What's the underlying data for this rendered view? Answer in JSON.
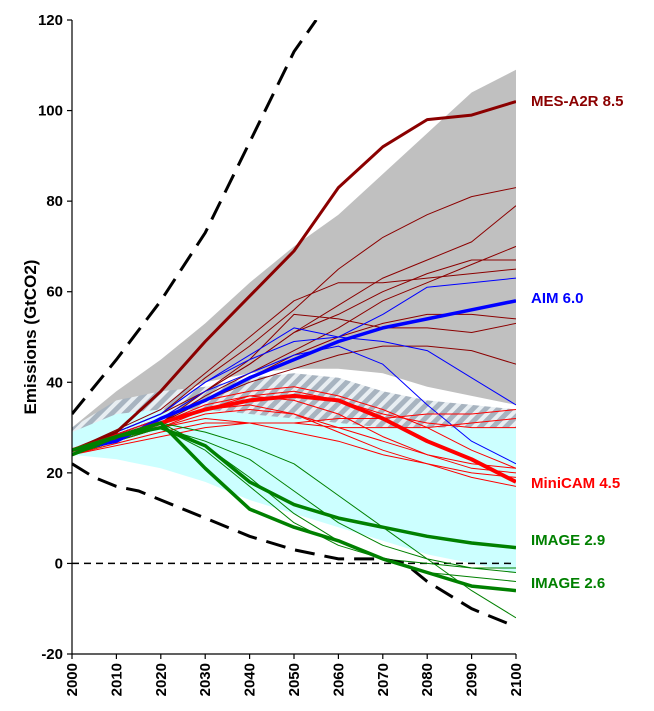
{
  "chart_data": {
    "type": "line",
    "title": "",
    "xlabel": "",
    "ylabel": "Emissions (GtCO2)",
    "xlim": [
      2000,
      2100
    ],
    "ylim": [
      -20,
      120
    ],
    "x_ticks": [
      2000,
      2010,
      2020,
      2030,
      2040,
      2050,
      2060,
      2070,
      2080,
      2090,
      2100
    ],
    "y_ticks": [
      -20,
      0,
      20,
      40,
      60,
      80,
      100,
      120
    ],
    "grid": false,
    "legend": "none",
    "colors": {
      "mes": "#8B0000",
      "aim": "#0000FF",
      "minicam": "#FF0000",
      "image": "#008000",
      "gray_band": "#C0C0C0",
      "cyan_band": "#CCFFFF",
      "hatch": "#A8B4C0"
    },
    "bands": [
      {
        "kind": "gray",
        "x": [
          2000,
          2010,
          2020,
          2030,
          2040,
          2050,
          2060,
          2070,
          2080,
          2090,
          2100
        ],
        "upper": [
          30,
          38,
          45,
          53,
          62,
          70,
          77,
          86,
          95,
          104,
          109
        ],
        "lower": [
          27,
          30,
          36,
          40,
          42,
          43,
          43,
          42,
          39,
          37,
          35
        ]
      },
      {
        "kind": "hatch",
        "x": [
          2000,
          2010,
          2020,
          2030,
          2040,
          2050,
          2060,
          2070,
          2080,
          2090,
          2100
        ],
        "upper": [
          30,
          36,
          38,
          39,
          41,
          42,
          41,
          38,
          36,
          35,
          34
        ],
        "lower": [
          28,
          30,
          31,
          31,
          32,
          32,
          31,
          30,
          30,
          30,
          30
        ]
      },
      {
        "kind": "cyan",
        "x": [
          2000,
          2010,
          2020,
          2030,
          2040,
          2050,
          2060,
          2070,
          2080,
          2090,
          2100
        ],
        "upper": [
          29,
          33,
          34,
          34,
          33,
          32,
          31,
          30,
          30,
          30,
          30
        ],
        "lower": [
          24,
          23,
          21,
          18,
          14,
          11,
          8,
          5,
          2,
          0,
          -2
        ]
      }
    ],
    "dashed_bounds": [
      {
        "x": [
          2000,
          2010,
          2020,
          2030,
          2040,
          2050,
          2055
        ],
        "y": [
          33,
          45,
          58,
          73,
          93,
          113,
          120
        ]
      },
      {
        "x": [
          2000,
          2005,
          2010,
          2015,
          2020,
          2030,
          2040,
          2050,
          2060,
          2070,
          2075,
          2080,
          2090,
          2100
        ],
        "y": [
          22,
          19,
          17,
          16,
          14,
          10,
          6,
          3,
          1,
          1,
          0,
          -4,
          -10,
          -14
        ]
      }
    ],
    "zero_line": 0,
    "series": [
      {
        "name": "MES-A2R 8.5",
        "color": "#8B0000",
        "width": 3,
        "x": [
          2000,
          2010,
          2020,
          2030,
          2040,
          2050,
          2060,
          2070,
          2080,
          2090,
          2100
        ],
        "y": [
          25,
          29,
          38,
          49,
          59,
          69,
          83,
          92,
          98,
          99,
          102
        ]
      },
      {
        "name": "AIM 6.0",
        "color": "#0000FF",
        "width": 3.5,
        "x": [
          2000,
          2010,
          2020,
          2030,
          2040,
          2050,
          2060,
          2070,
          2080,
          2090,
          2100
        ],
        "y": [
          25,
          27,
          32,
          36,
          41,
          45,
          49,
          52,
          54,
          56,
          58
        ]
      },
      {
        "name": "MiniCAM 4.5",
        "color": "#FF0000",
        "width": 4,
        "x": [
          2000,
          2010,
          2020,
          2030,
          2040,
          2050,
          2060,
          2070,
          2080,
          2090,
          2100
        ],
        "y": [
          25,
          28,
          31,
          34,
          36,
          37,
          36,
          32,
          27,
          23,
          18
        ]
      },
      {
        "name": "IMAGE 2.9",
        "color": "#008000",
        "width": 3.5,
        "x": [
          2000,
          2010,
          2020,
          2030,
          2040,
          2050,
          2060,
          2070,
          2080,
          2090,
          2100
        ],
        "y": [
          25,
          28,
          30,
          26,
          18,
          13,
          10,
          8,
          6,
          4.5,
          3.5
        ]
      },
      {
        "name": "IMAGE 2.6",
        "color": "#008000",
        "width": 3.5,
        "x": [
          2000,
          2010,
          2020,
          2030,
          2040,
          2050,
          2060,
          2070,
          2080,
          2090,
          2100
        ],
        "y": [
          24,
          28,
          31,
          21,
          12,
          8,
          5,
          1,
          -2,
          -5,
          -6
        ]
      }
    ],
    "thin_lines": [
      {
        "color": "#8B0000",
        "x": [
          2000,
          2020,
          2030,
          2040,
          2050,
          2060,
          2070,
          2080,
          2090,
          2100
        ],
        "y": [
          25,
          33,
          41,
          48,
          56,
          65,
          72,
          77,
          81,
          83
        ]
      },
      {
        "color": "#8B0000",
        "x": [
          2000,
          2020,
          2030,
          2040,
          2050,
          2060,
          2070,
          2080,
          2090,
          2100
        ],
        "y": [
          25,
          32,
          38,
          44,
          51,
          57,
          63,
          67,
          71,
          79
        ]
      },
      {
        "color": "#8B0000",
        "x": [
          2000,
          2020,
          2030,
          2040,
          2050,
          2060,
          2070,
          2080,
          2090,
          2100
        ],
        "y": [
          24,
          31,
          37,
          42,
          47,
          52,
          58,
          62,
          66,
          70
        ]
      },
      {
        "color": "#8B0000",
        "x": [
          2000,
          2020,
          2030,
          2040,
          2050,
          2060,
          2070,
          2080,
          2090,
          2100
        ],
        "y": [
          25,
          34,
          42,
          50,
          58,
          62,
          62,
          63,
          64,
          65
        ]
      },
      {
        "color": "#8B0000",
        "x": [
          2000,
          2020,
          2030,
          2040,
          2050,
          2060,
          2070,
          2080,
          2090,
          2100
        ],
        "y": [
          25,
          33,
          38,
          44,
          51,
          55,
          60,
          64,
          67,
          67
        ]
      },
      {
        "color": "#8B0000",
        "x": [
          2000,
          2020,
          2030,
          2040,
          2050,
          2060,
          2070,
          2080,
          2090,
          2100
        ],
        "y": [
          24,
          31,
          36,
          41,
          46,
          50,
          53,
          55,
          55,
          54
        ]
      },
      {
        "color": "#8B0000",
        "x": [
          2000,
          2020,
          2030,
          2040,
          2050,
          2060,
          2070,
          2080,
          2090,
          2100
        ],
        "y": [
          24,
          31,
          38,
          45,
          55,
          54,
          52,
          52,
          51,
          53
        ]
      },
      {
        "color": "#8B0000",
        "x": [
          2000,
          2020,
          2030,
          2040,
          2050,
          2060,
          2070,
          2080,
          2090,
          2100
        ],
        "y": [
          25,
          32,
          36,
          40,
          43,
          46,
          48,
          48,
          47,
          44
        ]
      },
      {
        "color": "#0000FF",
        "x": [
          2000,
          2020,
          2030,
          2040,
          2050,
          2060,
          2070,
          2080,
          2090,
          2100
        ],
        "y": [
          25,
          33,
          40,
          46,
          52,
          50,
          55,
          61,
          62,
          63
        ]
      },
      {
        "color": "#0000FF",
        "x": [
          2000,
          2020,
          2030,
          2040,
          2050,
          2060,
          2070,
          2080,
          2090,
          2100
        ],
        "y": [
          25,
          33,
          40,
          45,
          49,
          50,
          49,
          47,
          41,
          35
        ]
      },
      {
        "color": "#0000FF",
        "x": [
          2000,
          2020,
          2030,
          2040,
          2050,
          2060,
          2070,
          2080,
          2090,
          2100
        ],
        "y": [
          25,
          32,
          38,
          42,
          46,
          48,
          44,
          35,
          27,
          22
        ]
      },
      {
        "color": "#FF0000",
        "x": [
          2000,
          2020,
          2030,
          2040,
          2050,
          2060,
          2070,
          2080,
          2090,
          2100
        ],
        "y": [
          24,
          30,
          34,
          37,
          38,
          36,
          33,
          31,
          30,
          30
        ]
      },
      {
        "color": "#FF0000",
        "x": [
          2000,
          2020,
          2030,
          2040,
          2050,
          2060,
          2070,
          2080,
          2090,
          2100
        ],
        "y": [
          25,
          32,
          36,
          38,
          39,
          37,
          34,
          30,
          25,
          21
        ]
      },
      {
        "color": "#FF0000",
        "x": [
          2000,
          2020,
          2030,
          2040,
          2050,
          2060,
          2070,
          2080,
          2090,
          2100
        ],
        "y": [
          24,
          31,
          35,
          37,
          36,
          33,
          28,
          24,
          21,
          20
        ]
      },
      {
        "color": "#FF0000",
        "x": [
          2000,
          2020,
          2030,
          2040,
          2050,
          2060,
          2070,
          2080,
          2090,
          2100
        ],
        "y": [
          24,
          30,
          33,
          34,
          33,
          30,
          27,
          24,
          22,
          21
        ]
      },
      {
        "color": "#FF0000",
        "x": [
          2000,
          2020,
          2030,
          2040,
          2050,
          2060,
          2070,
          2080,
          2090,
          2100
        ],
        "y": [
          24,
          29,
          31,
          31,
          31,
          30,
          30,
          30,
          31,
          32
        ]
      },
      {
        "color": "#FF0000",
        "x": [
          2000,
          2020,
          2030,
          2040,
          2050,
          2060,
          2070,
          2080,
          2090,
          2100
        ],
        "y": [
          24,
          28,
          30,
          31,
          31,
          32,
          32,
          33,
          33,
          34
        ]
      },
      {
        "color": "#FF0000",
        "x": [
          2000,
          2020,
          2030,
          2040,
          2050,
          2060,
          2070,
          2080,
          2090,
          2100
        ],
        "y": [
          25,
          31,
          34,
          35,
          33,
          29,
          25,
          22,
          19,
          17
        ]
      },
      {
        "color": "#FF0000",
        "x": [
          2000,
          2020,
          2030,
          2040,
          2050,
          2060,
          2070,
          2080,
          2090,
          2100
        ],
        "y": [
          24,
          30,
          32,
          31,
          29,
          27,
          24,
          22,
          20,
          19
        ]
      },
      {
        "color": "#008000",
        "x": [
          2000,
          2020,
          2030,
          2040,
          2050,
          2060,
          2070,
          2080,
          2090,
          2100
        ],
        "y": [
          25,
          30,
          27,
          23,
          16,
          9,
          4,
          1,
          -1,
          -2
        ]
      },
      {
        "color": "#008000",
        "x": [
          2000,
          2020,
          2030,
          2040,
          2050,
          2060,
          2070,
          2080,
          2090,
          2100
        ],
        "y": [
          25,
          31,
          29,
          26,
          22,
          15,
          8,
          1,
          -6,
          -12
        ]
      },
      {
        "color": "#008000",
        "x": [
          2000,
          2020,
          2030,
          2040,
          2050,
          2060,
          2070,
          2080,
          2090,
          2100
        ],
        "y": [
          25,
          31,
          26,
          19,
          11,
          5,
          1,
          -2,
          -3,
          -4
        ]
      },
      {
        "color": "#008000",
        "x": [
          2000,
          2020,
          2030,
          2040,
          2050,
          2060,
          2070,
          2080,
          2090,
          2100
        ],
        "y": [
          24,
          30,
          25,
          17,
          9,
          4,
          1,
          0,
          -1,
          -1
        ]
      }
    ]
  }
}
